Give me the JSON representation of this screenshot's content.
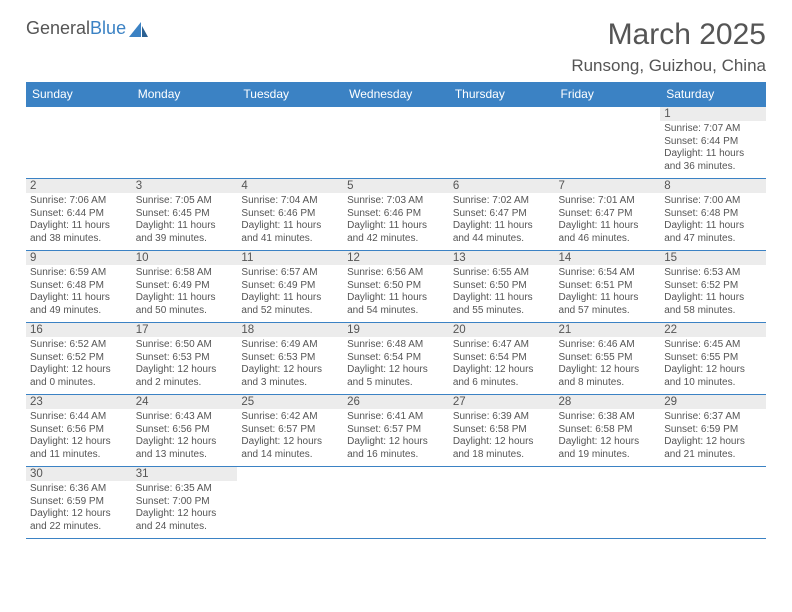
{
  "brand": {
    "name_left": "General",
    "name_right": "Blue"
  },
  "title": "March 2025",
  "location": "Runsong, Guizhou, China",
  "colors": {
    "header_bg": "#3b82c4",
    "text": "#555555",
    "daynum_bg": "#ececec",
    "border": "#3b82c4"
  },
  "weekdays": [
    "Sunday",
    "Monday",
    "Tuesday",
    "Wednesday",
    "Thursday",
    "Friday",
    "Saturday"
  ],
  "days": [
    {
      "n": 1,
      "sunrise": "7:07 AM",
      "sunset": "6:44 PM",
      "daylight": "11 hours and 36 minutes."
    },
    {
      "n": 2,
      "sunrise": "7:06 AM",
      "sunset": "6:44 PM",
      "daylight": "11 hours and 38 minutes."
    },
    {
      "n": 3,
      "sunrise": "7:05 AM",
      "sunset": "6:45 PM",
      "daylight": "11 hours and 39 minutes."
    },
    {
      "n": 4,
      "sunrise": "7:04 AM",
      "sunset": "6:46 PM",
      "daylight": "11 hours and 41 minutes."
    },
    {
      "n": 5,
      "sunrise": "7:03 AM",
      "sunset": "6:46 PM",
      "daylight": "11 hours and 42 minutes."
    },
    {
      "n": 6,
      "sunrise": "7:02 AM",
      "sunset": "6:47 PM",
      "daylight": "11 hours and 44 minutes."
    },
    {
      "n": 7,
      "sunrise": "7:01 AM",
      "sunset": "6:47 PM",
      "daylight": "11 hours and 46 minutes."
    },
    {
      "n": 8,
      "sunrise": "7:00 AM",
      "sunset": "6:48 PM",
      "daylight": "11 hours and 47 minutes."
    },
    {
      "n": 9,
      "sunrise": "6:59 AM",
      "sunset": "6:48 PM",
      "daylight": "11 hours and 49 minutes."
    },
    {
      "n": 10,
      "sunrise": "6:58 AM",
      "sunset": "6:49 PM",
      "daylight": "11 hours and 50 minutes."
    },
    {
      "n": 11,
      "sunrise": "6:57 AM",
      "sunset": "6:49 PM",
      "daylight": "11 hours and 52 minutes."
    },
    {
      "n": 12,
      "sunrise": "6:56 AM",
      "sunset": "6:50 PM",
      "daylight": "11 hours and 54 minutes."
    },
    {
      "n": 13,
      "sunrise": "6:55 AM",
      "sunset": "6:50 PM",
      "daylight": "11 hours and 55 minutes."
    },
    {
      "n": 14,
      "sunrise": "6:54 AM",
      "sunset": "6:51 PM",
      "daylight": "11 hours and 57 minutes."
    },
    {
      "n": 15,
      "sunrise": "6:53 AM",
      "sunset": "6:52 PM",
      "daylight": "11 hours and 58 minutes."
    },
    {
      "n": 16,
      "sunrise": "6:52 AM",
      "sunset": "6:52 PM",
      "daylight": "12 hours and 0 minutes."
    },
    {
      "n": 17,
      "sunrise": "6:50 AM",
      "sunset": "6:53 PM",
      "daylight": "12 hours and 2 minutes."
    },
    {
      "n": 18,
      "sunrise": "6:49 AM",
      "sunset": "6:53 PM",
      "daylight": "12 hours and 3 minutes."
    },
    {
      "n": 19,
      "sunrise": "6:48 AM",
      "sunset": "6:54 PM",
      "daylight": "12 hours and 5 minutes."
    },
    {
      "n": 20,
      "sunrise": "6:47 AM",
      "sunset": "6:54 PM",
      "daylight": "12 hours and 6 minutes."
    },
    {
      "n": 21,
      "sunrise": "6:46 AM",
      "sunset": "6:55 PM",
      "daylight": "12 hours and 8 minutes."
    },
    {
      "n": 22,
      "sunrise": "6:45 AM",
      "sunset": "6:55 PM",
      "daylight": "12 hours and 10 minutes."
    },
    {
      "n": 23,
      "sunrise": "6:44 AM",
      "sunset": "6:56 PM",
      "daylight": "12 hours and 11 minutes."
    },
    {
      "n": 24,
      "sunrise": "6:43 AM",
      "sunset": "6:56 PM",
      "daylight": "12 hours and 13 minutes."
    },
    {
      "n": 25,
      "sunrise": "6:42 AM",
      "sunset": "6:57 PM",
      "daylight": "12 hours and 14 minutes."
    },
    {
      "n": 26,
      "sunrise": "6:41 AM",
      "sunset": "6:57 PM",
      "daylight": "12 hours and 16 minutes."
    },
    {
      "n": 27,
      "sunrise": "6:39 AM",
      "sunset": "6:58 PM",
      "daylight": "12 hours and 18 minutes."
    },
    {
      "n": 28,
      "sunrise": "6:38 AM",
      "sunset": "6:58 PM",
      "daylight": "12 hours and 19 minutes."
    },
    {
      "n": 29,
      "sunrise": "6:37 AM",
      "sunset": "6:59 PM",
      "daylight": "12 hours and 21 minutes."
    },
    {
      "n": 30,
      "sunrise": "6:36 AM",
      "sunset": "6:59 PM",
      "daylight": "12 hours and 22 minutes."
    },
    {
      "n": 31,
      "sunrise": "6:35 AM",
      "sunset": "7:00 PM",
      "daylight": "12 hours and 24 minutes."
    }
  ],
  "labels": {
    "sunrise": "Sunrise:",
    "sunset": "Sunset:",
    "daylight": "Daylight:"
  },
  "layout": {
    "first_weekday_index": 6,
    "total_days": 31
  }
}
